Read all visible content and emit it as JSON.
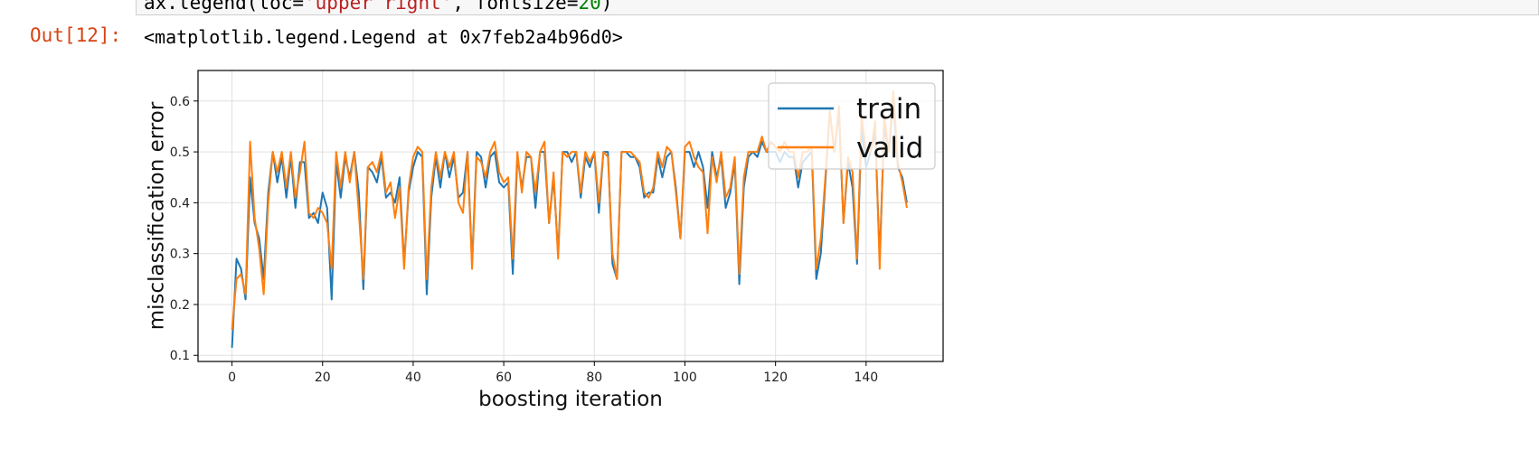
{
  "cell": {
    "code_prefix": "ax.legend(loc=",
    "code_string": "'upper right'",
    "code_mid": ", fontsize=",
    "code_number": "20",
    "code_suffix": ")",
    "out_prompt": "Out[12]:",
    "out_text": "<matplotlib.legend.Legend at 0x7feb2a4b96d0>"
  },
  "colors": {
    "train": "#1f77b4",
    "valid": "#ff7f0e",
    "grid": "#e0e0e0",
    "out_prompt": "#d84315"
  },
  "chart_data": {
    "type": "line",
    "title": "",
    "xlabel": "boosting iteration",
    "ylabel": "misclassification error",
    "xlim": [
      -7.5,
      157
    ],
    "ylim": [
      0.088,
      0.66
    ],
    "xticks": [
      0,
      20,
      40,
      60,
      80,
      100,
      120,
      140
    ],
    "yticks": [
      0.1,
      0.2,
      0.3,
      0.4,
      0.5,
      0.6
    ],
    "xtick_labels": [
      "0",
      "20",
      "40",
      "60",
      "80",
      "100",
      "120",
      "140"
    ],
    "ytick_labels": [
      "0.1",
      "0.2",
      "0.3",
      "0.4",
      "0.5",
      "0.6"
    ],
    "grid": true,
    "legend_position": "upper right",
    "x_start": 0,
    "x_step": 1,
    "series": [
      {
        "name": "train",
        "values": [
          0.115,
          0.29,
          0.27,
          0.21,
          0.45,
          0.36,
          0.33,
          0.25,
          0.42,
          0.5,
          0.44,
          0.49,
          0.41,
          0.49,
          0.39,
          0.48,
          0.48,
          0.37,
          0.38,
          0.36,
          0.42,
          0.39,
          0.21,
          0.48,
          0.41,
          0.49,
          0.45,
          0.5,
          0.42,
          0.23,
          0.47,
          0.46,
          0.44,
          0.49,
          0.41,
          0.42,
          0.4,
          0.45,
          0.28,
          0.42,
          0.47,
          0.5,
          0.49,
          0.22,
          0.41,
          0.49,
          0.43,
          0.5,
          0.45,
          0.49,
          0.41,
          0.42,
          0.5,
          0.28,
          0.5,
          0.49,
          0.43,
          0.49,
          0.5,
          0.44,
          0.43,
          0.44,
          0.26,
          0.49,
          0.43,
          0.49,
          0.49,
          0.39,
          0.5,
          0.5,
          0.36,
          0.45,
          0.3,
          0.5,
          0.5,
          0.48,
          0.5,
          0.41,
          0.49,
          0.47,
          0.5,
          0.38,
          0.5,
          0.5,
          0.28,
          0.25,
          0.5,
          0.5,
          0.49,
          0.49,
          0.47,
          0.41,
          0.42,
          0.42,
          0.49,
          0.45,
          0.49,
          0.5,
          0.43,
          0.33,
          0.5,
          0.5,
          0.47,
          0.5,
          0.47,
          0.39,
          0.5,
          0.45,
          0.49,
          0.39,
          0.42,
          0.48,
          0.24,
          0.43,
          0.49,
          0.5,
          0.49,
          0.52,
          0.5,
          0.5,
          0.5,
          0.48,
          0.5,
          0.49,
          0.49,
          0.43,
          0.48,
          0.49,
          0.5,
          0.25,
          0.3,
          0.44,
          0.58,
          0.5,
          0.58,
          0.36,
          0.48,
          0.43,
          0.28,
          0.55,
          0.47,
          0.5,
          0.54,
          0.29,
          0.55,
          0.5,
          0.6,
          0.47,
          0.45,
          0.4
        ]
      },
      {
        "name": "valid",
        "values": [
          0.15,
          0.25,
          0.26,
          0.22,
          0.52,
          0.37,
          0.31,
          0.22,
          0.4,
          0.5,
          0.46,
          0.5,
          0.43,
          0.5,
          0.41,
          0.46,
          0.52,
          0.38,
          0.37,
          0.39,
          0.38,
          0.36,
          0.27,
          0.5,
          0.43,
          0.5,
          0.44,
          0.5,
          0.38,
          0.25,
          0.47,
          0.48,
          0.46,
          0.5,
          0.42,
          0.44,
          0.37,
          0.43,
          0.27,
          0.43,
          0.49,
          0.51,
          0.5,
          0.25,
          0.43,
          0.5,
          0.45,
          0.5,
          0.47,
          0.5,
          0.4,
          0.38,
          0.5,
          0.27,
          0.49,
          0.48,
          0.45,
          0.5,
          0.52,
          0.46,
          0.44,
          0.45,
          0.29,
          0.5,
          0.42,
          0.5,
          0.49,
          0.42,
          0.5,
          0.52,
          0.36,
          0.46,
          0.29,
          0.5,
          0.49,
          0.5,
          0.5,
          0.42,
          0.5,
          0.48,
          0.5,
          0.4,
          0.5,
          0.49,
          0.3,
          0.25,
          0.5,
          0.5,
          0.5,
          0.49,
          0.48,
          0.42,
          0.41,
          0.43,
          0.5,
          0.47,
          0.51,
          0.5,
          0.42,
          0.33,
          0.51,
          0.52,
          0.49,
          0.47,
          0.46,
          0.34,
          0.49,
          0.44,
          0.5,
          0.41,
          0.43,
          0.49,
          0.26,
          0.45,
          0.5,
          0.5,
          0.5,
          0.53,
          0.5,
          0.52,
          0.51,
          0.5,
          0.52,
          0.5,
          0.5,
          0.45,
          0.5,
          0.5,
          0.51,
          0.27,
          0.33,
          0.45,
          0.58,
          0.5,
          0.59,
          0.36,
          0.49,
          0.46,
          0.29,
          0.57,
          0.5,
          0.5,
          0.56,
          0.27,
          0.57,
          0.5,
          0.62,
          0.48,
          0.44,
          0.39
        ]
      }
    ]
  }
}
